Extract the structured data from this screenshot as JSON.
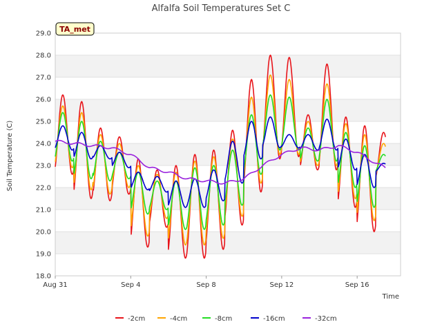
{
  "chart_data": {
    "type": "line",
    "title": "Alfalfa Soil Temperatures Set C",
    "xlabel": "Time",
    "ylabel": "Soil Temperature (C)",
    "badge": "TA_met",
    "x_ticks": [
      {
        "label": "Aug 31",
        "day": 0
      },
      {
        "label": "Sep 4",
        "day": 4
      },
      {
        "label": "Sep 8",
        "day": 8
      },
      {
        "label": "Sep 12",
        "day": 12
      },
      {
        "label": "Sep 16",
        "day": 16
      }
    ],
    "xlim_days": [
      0,
      18.3
    ],
    "ylim": [
      18.0,
      29.0
    ],
    "y_ticks": [
      "18.0",
      "19.0",
      "20.0",
      "21.0",
      "22.0",
      "23.0",
      "24.0",
      "25.0",
      "26.0",
      "27.0",
      "28.0",
      "29.0"
    ],
    "grid": "horizontal bands",
    "legend_position": "bottom",
    "series": [
      {
        "name": "-2cm",
        "color": "#e8141a",
        "daily_max": [
          26.2,
          25.9,
          24.7,
          24.3,
          23.3,
          22.8,
          23.0,
          23.5,
          23.7,
          24.6,
          26.9,
          28.0,
          27.9,
          25.3,
          27.6,
          25.2,
          24.8,
          24.5
        ],
        "daily_min": [
          22.6,
          21.5,
          21.4,
          21.7,
          19.3,
          20.2,
          18.8,
          18.8,
          19.2,
          20.3,
          21.8,
          23.3,
          23.4,
          22.8,
          22.8,
          21.1,
          20.0,
          22.3
        ]
      },
      {
        "name": "-4cm",
        "color": "#ffa500",
        "daily_max": [
          25.7,
          25.4,
          24.4,
          24.0,
          23.0,
          22.6,
          22.7,
          23.2,
          23.4,
          24.2,
          26.1,
          27.1,
          26.9,
          25.0,
          26.7,
          24.9,
          24.4,
          24.0
        ],
        "daily_min": [
          22.9,
          21.9,
          21.7,
          22.0,
          19.8,
          20.6,
          19.4,
          19.4,
          19.7,
          20.7,
          22.2,
          23.5,
          23.5,
          23.0,
          23.0,
          21.5,
          20.5,
          22.5
        ]
      },
      {
        "name": "-8cm",
        "color": "#22dd22",
        "daily_max": [
          25.4,
          25.0,
          24.1,
          23.6,
          22.7,
          22.3,
          22.3,
          22.9,
          23.0,
          23.7,
          25.3,
          26.2,
          26.1,
          24.7,
          26.0,
          24.5,
          23.9,
          23.5
        ],
        "daily_min": [
          23.2,
          22.4,
          22.3,
          22.4,
          20.8,
          21.0,
          20.1,
          20.1,
          20.3,
          21.2,
          22.6,
          23.7,
          23.7,
          23.2,
          23.2,
          22.0,
          21.1,
          22.7
        ]
      },
      {
        "name": "-16cm",
        "color": "#0000cc",
        "daily_max": [
          24.8,
          24.5,
          23.9,
          23.6,
          22.7,
          22.5,
          22.3,
          22.4,
          22.8,
          24.1,
          25.0,
          25.2,
          24.4,
          24.4,
          25.1,
          24.2,
          23.5,
          23.1
        ],
        "daily_min": [
          23.7,
          23.3,
          23.3,
          22.9,
          21.9,
          21.8,
          21.1,
          21.1,
          21.4,
          22.2,
          23.3,
          23.8,
          23.8,
          23.7,
          23.7,
          22.8,
          22.0,
          22.7
        ]
      },
      {
        "name": "-32cm",
        "color": "#9922dd",
        "points": [
          [
            0,
            24.1
          ],
          [
            1,
            24.0
          ],
          [
            2,
            23.9
          ],
          [
            3,
            23.8
          ],
          [
            4,
            23.5
          ],
          [
            5,
            22.9
          ],
          [
            6,
            22.7
          ],
          [
            7,
            22.4
          ],
          [
            8,
            22.3
          ],
          [
            9,
            22.2
          ],
          [
            10,
            22.4
          ],
          [
            11,
            23.0
          ],
          [
            12,
            23.5
          ],
          [
            13,
            23.8
          ],
          [
            14,
            23.7
          ],
          [
            15,
            23.9
          ],
          [
            16,
            23.6
          ],
          [
            17,
            23.1
          ],
          [
            17.5,
            22.9
          ]
        ]
      }
    ]
  }
}
